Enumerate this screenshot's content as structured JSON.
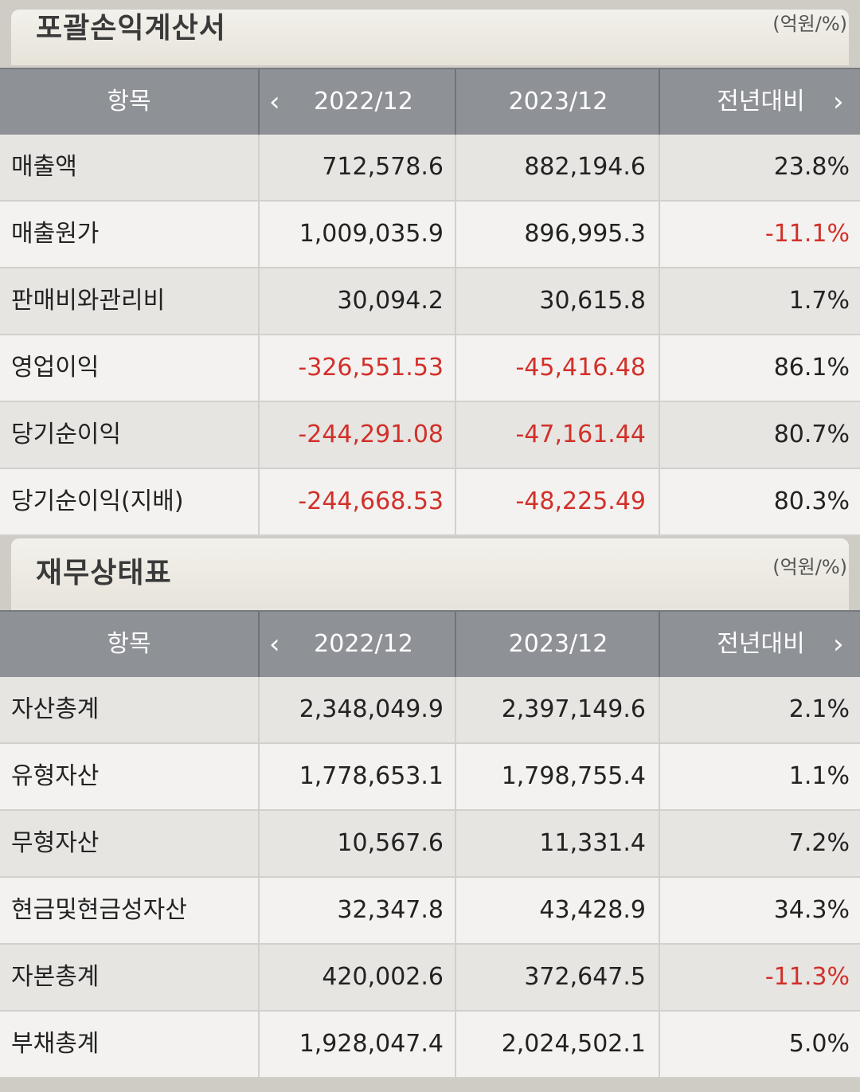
{
  "sections": [
    {
      "title": "포괄손익계산서",
      "unit": "(억원/%)",
      "headers": {
        "item": "항목",
        "col1": "2022/12",
        "col2": "2023/12",
        "col3": "전년대비"
      },
      "nav": {
        "prev": "‹",
        "next": "›"
      },
      "rows": [
        {
          "label": "매출액",
          "v1": "712,578.6",
          "v2": "882,194.6",
          "v3": "23.8%"
        },
        {
          "label": "매출원가",
          "v1": "1,009,035.9",
          "v2": "896,995.3",
          "v3": "-11.1%"
        },
        {
          "label": "판매비와관리비",
          "v1": "30,094.2",
          "v2": "30,615.8",
          "v3": "1.7%"
        },
        {
          "label": "영업이익",
          "v1": "-326,551.53",
          "v2": "-45,416.48",
          "v3": "86.1%"
        },
        {
          "label": "당기순이익",
          "v1": "-244,291.08",
          "v2": "-47,161.44",
          "v3": "80.7%"
        },
        {
          "label": "당기순이익(지배)",
          "v1": "-244,668.53",
          "v2": "-48,225.49",
          "v3": "80.3%"
        }
      ]
    },
    {
      "title": "재무상태표",
      "unit": "(억원/%)",
      "headers": {
        "item": "항목",
        "col1": "2022/12",
        "col2": "2023/12",
        "col3": "전년대비"
      },
      "nav": {
        "prev": "‹",
        "next": "›"
      },
      "rows": [
        {
          "label": "자산총계",
          "v1": "2,348,049.9",
          "v2": "2,397,149.6",
          "v3": "2.1%"
        },
        {
          "label": "유형자산",
          "v1": "1,778,653.1",
          "v2": "1,798,755.4",
          "v3": "1.1%"
        },
        {
          "label": "무형자산",
          "v1": "10,567.6",
          "v2": "11,331.4",
          "v3": "7.2%"
        },
        {
          "label": "현금및현금성자산",
          "v1": "32,347.8",
          "v2": "43,428.9",
          "v3": "34.3%"
        },
        {
          "label": "자본총계",
          "v1": "420,002.6",
          "v2": "372,647.5",
          "v3": "-11.3%"
        },
        {
          "label": "부채총계",
          "v1": "1,928,047.4",
          "v2": "2,024,502.1",
          "v3": "5.0%"
        }
      ]
    }
  ],
  "colors": {
    "negative": "#d2302a",
    "header_bg": "#8e9196"
  }
}
